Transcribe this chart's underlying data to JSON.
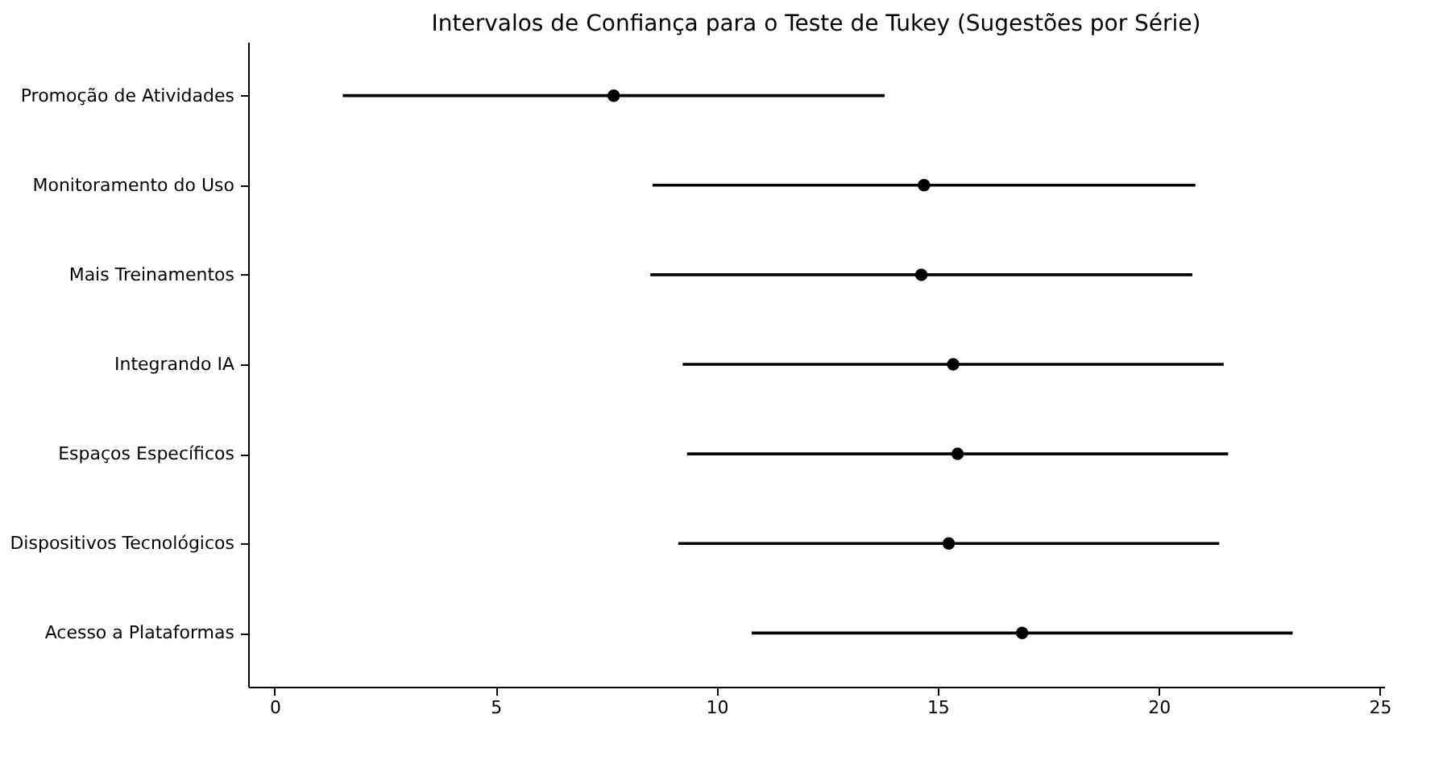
{
  "chart_data": {
    "type": "scatter",
    "orientation": "horizontal",
    "title": "Intervalos de Confiança para o Teste de Tukey (Sugestões por Série)",
    "categories": [
      "Promoção de Atividades",
      "Monitoramento do Uso",
      "Mais Treinamentos",
      "Integrando IA",
      "Espaços Específicos",
      "Dispositivos Tecnológicos",
      "Acesso a Plataformas"
    ],
    "series": [
      {
        "color": "#000000",
        "values": [
          7.67,
          14.69,
          14.63,
          15.35,
          15.45,
          15.25,
          16.91
        ],
        "errors": [
          6.13,
          6.14,
          6.13,
          6.12,
          6.12,
          6.12,
          6.12
        ]
      }
    ],
    "xlim": [
      -0.6,
      25.1
    ],
    "xticks": [
      0,
      5,
      10,
      15,
      20,
      25
    ],
    "grid": false,
    "marker": "circle"
  }
}
